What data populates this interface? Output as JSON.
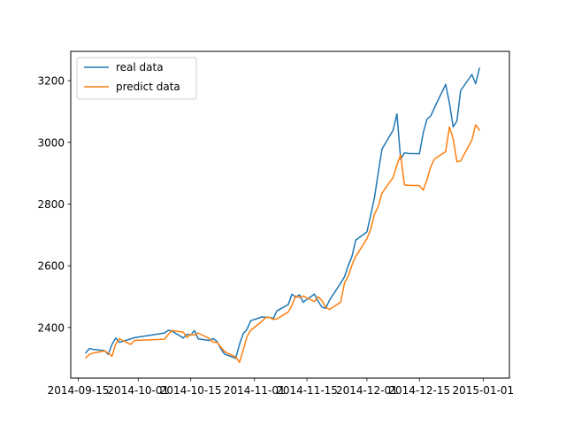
{
  "chart_data": {
    "type": "line",
    "xlim": [
      "2014-09-13",
      "2015-01-08"
    ],
    "ylim": [
      2236,
      3295
    ],
    "x_ticks": [
      "2014-09-15",
      "2014-10-01",
      "2014-10-15",
      "2014-11-01",
      "2014-11-15",
      "2014-12-01",
      "2014-12-15",
      "2015-01-01"
    ],
    "x_tick_labels": [
      "2014-09-15",
      "2014-10-01",
      "2014-10-15",
      "2014-11-01",
      "2014-11-15",
      "2014-12-01",
      "2014-12-15",
      "2015-01-01"
    ],
    "y_ticks": [
      2400,
      2600,
      2800,
      3000,
      3200
    ],
    "y_tick_labels": [
      "2400",
      "2600",
      "2800",
      "3000",
      "3200"
    ],
    "grid": false,
    "legend_position": "top-left",
    "series": [
      {
        "name": "real data",
        "color": "#1f77b4",
        "points": [
          [
            "2014-09-17",
            2318
          ],
          [
            "2014-09-18",
            2332
          ],
          [
            "2014-09-19",
            2329
          ],
          [
            "2014-09-22",
            2325
          ],
          [
            "2014-09-23",
            2313
          ],
          [
            "2014-09-24",
            2345
          ],
          [
            "2014-09-25",
            2366
          ],
          [
            "2014-09-26",
            2352
          ],
          [
            "2014-09-29",
            2363
          ],
          [
            "2014-09-30",
            2367
          ],
          [
            "2014-10-08",
            2382
          ],
          [
            "2014-10-09",
            2391
          ],
          [
            "2014-10-10",
            2388
          ],
          [
            "2014-10-13",
            2366
          ],
          [
            "2014-10-14",
            2378
          ],
          [
            "2014-10-15",
            2375
          ],
          [
            "2014-10-16",
            2390
          ],
          [
            "2014-10-17",
            2363
          ],
          [
            "2014-10-20",
            2358
          ],
          [
            "2014-10-21",
            2364
          ],
          [
            "2014-10-22",
            2355
          ],
          [
            "2014-10-23",
            2332
          ],
          [
            "2014-10-24",
            2314
          ],
          [
            "2014-10-27",
            2300
          ],
          [
            "2014-10-28",
            2345
          ],
          [
            "2014-10-29",
            2380
          ],
          [
            "2014-10-30",
            2394
          ],
          [
            "2014-10-31",
            2422
          ],
          [
            "2014-11-03",
            2434
          ],
          [
            "2014-11-04",
            2433
          ],
          [
            "2014-11-05",
            2433
          ],
          [
            "2014-11-06",
            2429
          ],
          [
            "2014-11-07",
            2454
          ],
          [
            "2014-11-10",
            2474
          ],
          [
            "2014-11-11",
            2508
          ],
          [
            "2014-11-12",
            2498
          ],
          [
            "2014-11-13",
            2506
          ],
          [
            "2014-11-14",
            2482
          ],
          [
            "2014-11-17",
            2508
          ],
          [
            "2014-11-18",
            2485
          ],
          [
            "2014-11-19",
            2466
          ],
          [
            "2014-11-20",
            2462
          ],
          [
            "2014-11-21",
            2488
          ],
          [
            "2014-11-24",
            2544
          ],
          [
            "2014-11-25",
            2564
          ],
          [
            "2014-11-26",
            2600
          ],
          [
            "2014-11-27",
            2630
          ],
          [
            "2014-11-28",
            2683
          ],
          [
            "2014-12-01",
            2710
          ],
          [
            "2014-12-02",
            2764
          ],
          [
            "2014-12-03",
            2820
          ],
          [
            "2014-12-04",
            2900
          ],
          [
            "2014-12-05",
            2978
          ],
          [
            "2014-12-08",
            3040
          ],
          [
            "2014-12-09",
            3092
          ],
          [
            "2014-12-10",
            2945
          ],
          [
            "2014-12-11",
            2966
          ],
          [
            "2014-12-12",
            2964
          ],
          [
            "2014-12-15",
            2963
          ],
          [
            "2014-12-16",
            3030
          ],
          [
            "2014-12-17",
            3075
          ],
          [
            "2014-12-18",
            3085
          ],
          [
            "2014-12-19",
            3112
          ],
          [
            "2014-12-22",
            3188
          ],
          [
            "2014-12-23",
            3128
          ],
          [
            "2014-12-24",
            3050
          ],
          [
            "2014-12-25",
            3069
          ],
          [
            "2014-12-26",
            3168
          ],
          [
            "2014-12-29",
            3220
          ],
          [
            "2014-12-30",
            3190
          ],
          [
            "2014-12-31",
            3240
          ]
        ]
      },
      {
        "name": "predict data",
        "color": "#ff7f0e",
        "points": [
          [
            "2014-09-17",
            2302
          ],
          [
            "2014-09-18",
            2313
          ],
          [
            "2014-09-19",
            2317
          ],
          [
            "2014-09-22",
            2324
          ],
          [
            "2014-09-23",
            2317
          ],
          [
            "2014-09-24",
            2307
          ],
          [
            "2014-09-25",
            2347
          ],
          [
            "2014-09-26",
            2363
          ],
          [
            "2014-09-29",
            2345
          ],
          [
            "2014-09-30",
            2358
          ],
          [
            "2014-10-08",
            2362
          ],
          [
            "2014-10-09",
            2377
          ],
          [
            "2014-10-10",
            2390
          ],
          [
            "2014-10-13",
            2385
          ],
          [
            "2014-10-14",
            2368
          ],
          [
            "2014-10-15",
            2378
          ],
          [
            "2014-10-16",
            2375
          ],
          [
            "2014-10-17",
            2382
          ],
          [
            "2014-10-20",
            2364
          ],
          [
            "2014-10-21",
            2352
          ],
          [
            "2014-10-22",
            2352
          ],
          [
            "2014-10-23",
            2337
          ],
          [
            "2014-10-24",
            2322
          ],
          [
            "2014-10-27",
            2304
          ],
          [
            "2014-10-28",
            2287
          ],
          [
            "2014-10-29",
            2327
          ],
          [
            "2014-10-30",
            2370
          ],
          [
            "2014-10-31",
            2391
          ],
          [
            "2014-11-03",
            2420
          ],
          [
            "2014-11-04",
            2432
          ],
          [
            "2014-11-05",
            2433
          ],
          [
            "2014-11-06",
            2426
          ],
          [
            "2014-11-07",
            2428
          ],
          [
            "2014-11-10",
            2450
          ],
          [
            "2014-11-11",
            2472
          ],
          [
            "2014-11-12",
            2502
          ],
          [
            "2014-11-13",
            2497
          ],
          [
            "2014-11-14",
            2502
          ],
          [
            "2014-11-17",
            2484
          ],
          [
            "2014-11-18",
            2500
          ],
          [
            "2014-11-19",
            2487
          ],
          [
            "2014-11-20",
            2466
          ],
          [
            "2014-11-21",
            2458
          ],
          [
            "2014-11-24",
            2482
          ],
          [
            "2014-11-25",
            2543
          ],
          [
            "2014-11-26",
            2566
          ],
          [
            "2014-11-27",
            2602
          ],
          [
            "2014-11-28",
            2630
          ],
          [
            "2014-12-01",
            2688
          ],
          [
            "2014-12-02",
            2718
          ],
          [
            "2014-12-03",
            2767
          ],
          [
            "2014-12-04",
            2792
          ],
          [
            "2014-12-05",
            2835
          ],
          [
            "2014-12-08",
            2887
          ],
          [
            "2014-12-09",
            2927
          ],
          [
            "2014-12-10",
            2960
          ],
          [
            "2014-12-11",
            2862
          ],
          [
            "2014-12-12",
            2861
          ],
          [
            "2014-12-15",
            2860
          ],
          [
            "2014-12-16",
            2845
          ],
          [
            "2014-12-17",
            2878
          ],
          [
            "2014-12-18",
            2920
          ],
          [
            "2014-12-19",
            2946
          ],
          [
            "2014-12-22",
            2970
          ],
          [
            "2014-12-23",
            3050
          ],
          [
            "2014-12-24",
            3012
          ],
          [
            "2014-12-25",
            2937
          ],
          [
            "2014-12-26",
            2940
          ],
          [
            "2014-12-29",
            3008
          ],
          [
            "2014-12-30",
            3057
          ],
          [
            "2014-12-31",
            3040
          ]
        ]
      }
    ]
  }
}
